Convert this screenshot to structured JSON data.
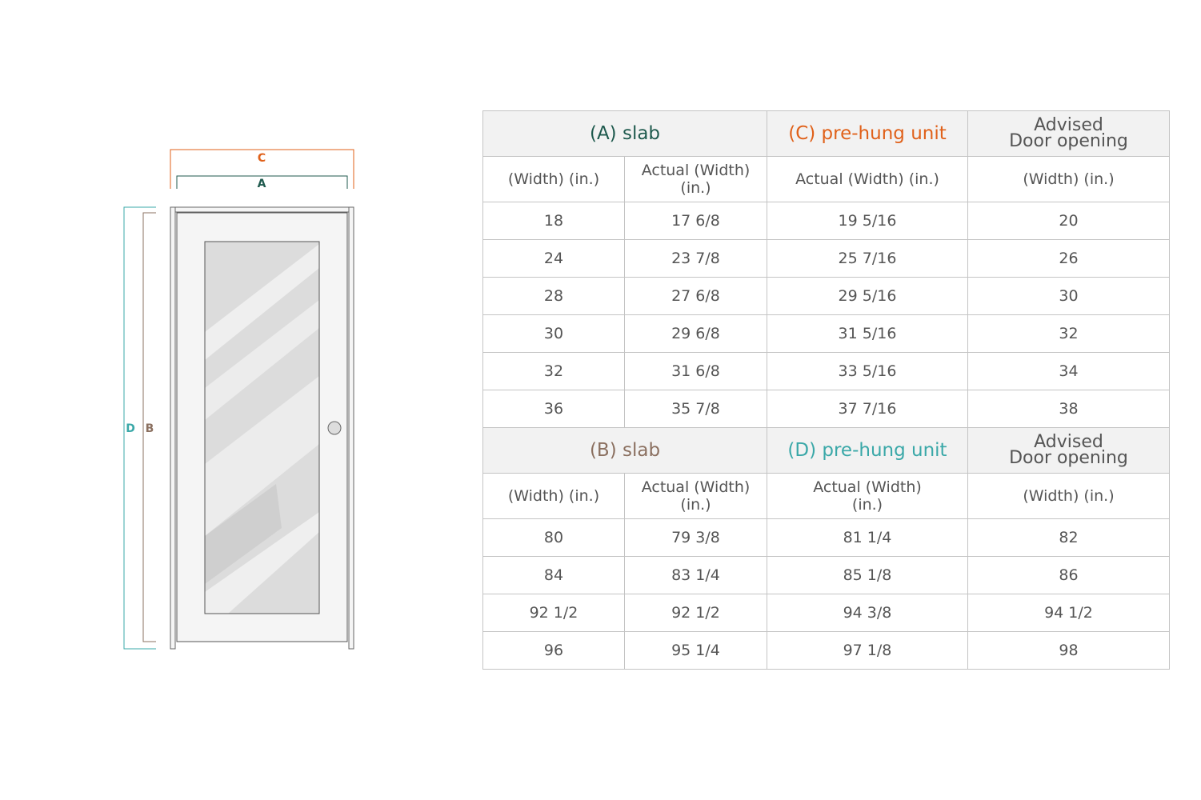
{
  "diagram": {
    "labels": {
      "A": "A",
      "B": "B",
      "C": "C",
      "D": "D"
    },
    "colors": {
      "A": "#1f5a4e",
      "B": "#8b7060",
      "C": "#e0611a",
      "D": "#3aa8a8"
    }
  },
  "width_table": {
    "header": {
      "slab": "(A) slab",
      "prehung": "(C) pre-hung unit",
      "advised_line1": "Advised",
      "advised_line2": "Door opening"
    },
    "subheader": [
      "(Width) (in.)",
      "Actual (Width) (in.)",
      "Actual (Width) (in.)",
      "(Width) (in.)"
    ],
    "rows": [
      [
        "18",
        "17 6/8",
        "19 5/16",
        "20"
      ],
      [
        "24",
        "23 7/8",
        "25 7/16",
        "26"
      ],
      [
        "28",
        "27 6/8",
        "29 5/16",
        "30"
      ],
      [
        "30",
        "29 6/8",
        "31 5/16",
        "32"
      ],
      [
        "32",
        "31 6/8",
        "33 5/16",
        "34"
      ],
      [
        "36",
        "35 7/8",
        "37 7/16",
        "38"
      ]
    ]
  },
  "height_table": {
    "header": {
      "slab": "(B) slab",
      "prehung": "(D) pre-hung unit",
      "advised_line1": "Advised",
      "advised_line2": "Door opening"
    },
    "subheader": [
      "(Width) (in.)",
      "Actual (Width) (in.)",
      "Actual (Width) (in.)",
      "(Width) (in.)"
    ],
    "rows": [
      [
        "80",
        "79 3/8",
        "81 1/4",
        "82"
      ],
      [
        "84",
        "83 1/4",
        "85 1/8",
        "86"
      ],
      [
        "92 1/2",
        "92 1/2",
        "94 3/8",
        "94 1/2"
      ],
      [
        "96",
        "95 1/4",
        "97 1/8",
        "98"
      ]
    ]
  }
}
